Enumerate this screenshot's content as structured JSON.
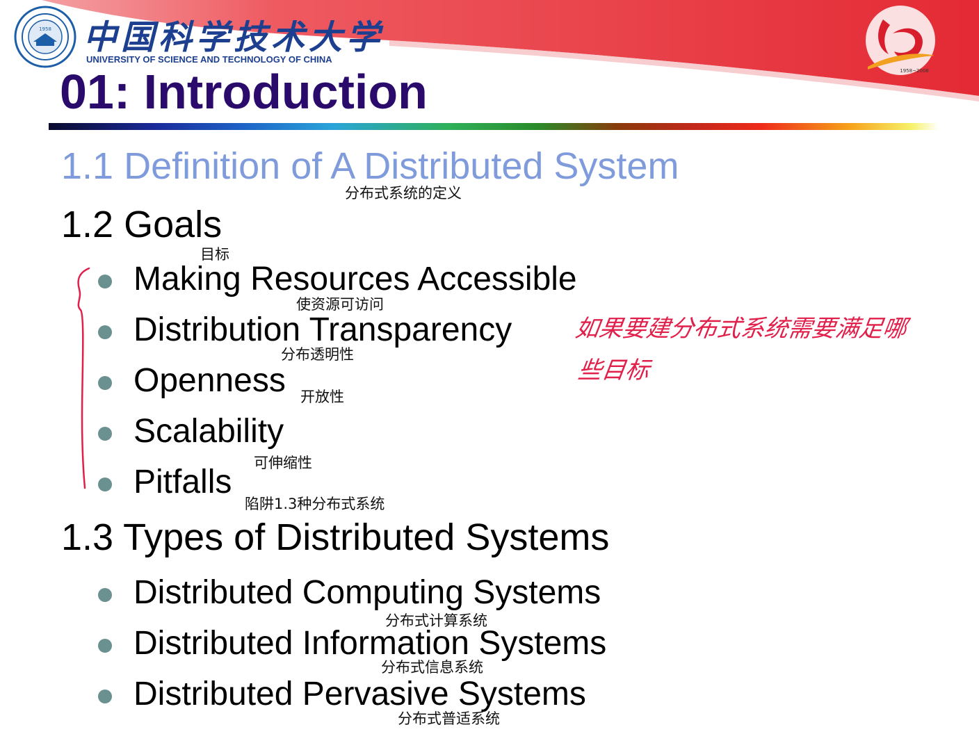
{
  "header": {
    "university_cn": "中国科学技术大学",
    "university_en": "UNIVERSITY OF SCIENCE AND TECHNOLOGY OF CHINA",
    "seal_year": "1958",
    "anniversary_years": "1958~2008"
  },
  "title": "01: Introduction",
  "sections": [
    {
      "heading": "1.1 Definition of A Distributed System",
      "note": "分布式系统的定义"
    },
    {
      "heading": "1.2 Goals",
      "note": "目标",
      "items": [
        {
          "text": "Making Resources Accessible",
          "note": "使资源可访问"
        },
        {
          "text": "Distribution Transparency",
          "note": "分布透明性"
        },
        {
          "text": "Openness",
          "note": "开放性"
        },
        {
          "text": "Scalability",
          "note": "可伸缩性"
        },
        {
          "text": "Pitfalls",
          "note": "陷阱1.3种分布式系统"
        }
      ]
    },
    {
      "heading": "1.3 Types of Distributed Systems",
      "items": [
        {
          "text": "Distributed Computing Systems",
          "note": "分布式计算系统"
        },
        {
          "text": "Distributed Information Systems",
          "note": "分布式信息系统"
        },
        {
          "text": "Distributed Pervasive Systems",
          "note": "分布式普适系统"
        }
      ]
    }
  ],
  "handwritten": {
    "line1": "如果要建分布式系统需要满足哪",
    "line2": "些目标"
  },
  "colors": {
    "title": "#2a0a6b",
    "completed_section": "#7f9bdc",
    "bullet": "#6b9090",
    "handwriting": "#e0204a",
    "banner_red": "#e8303a",
    "university_blue": "#1c3f8f"
  }
}
